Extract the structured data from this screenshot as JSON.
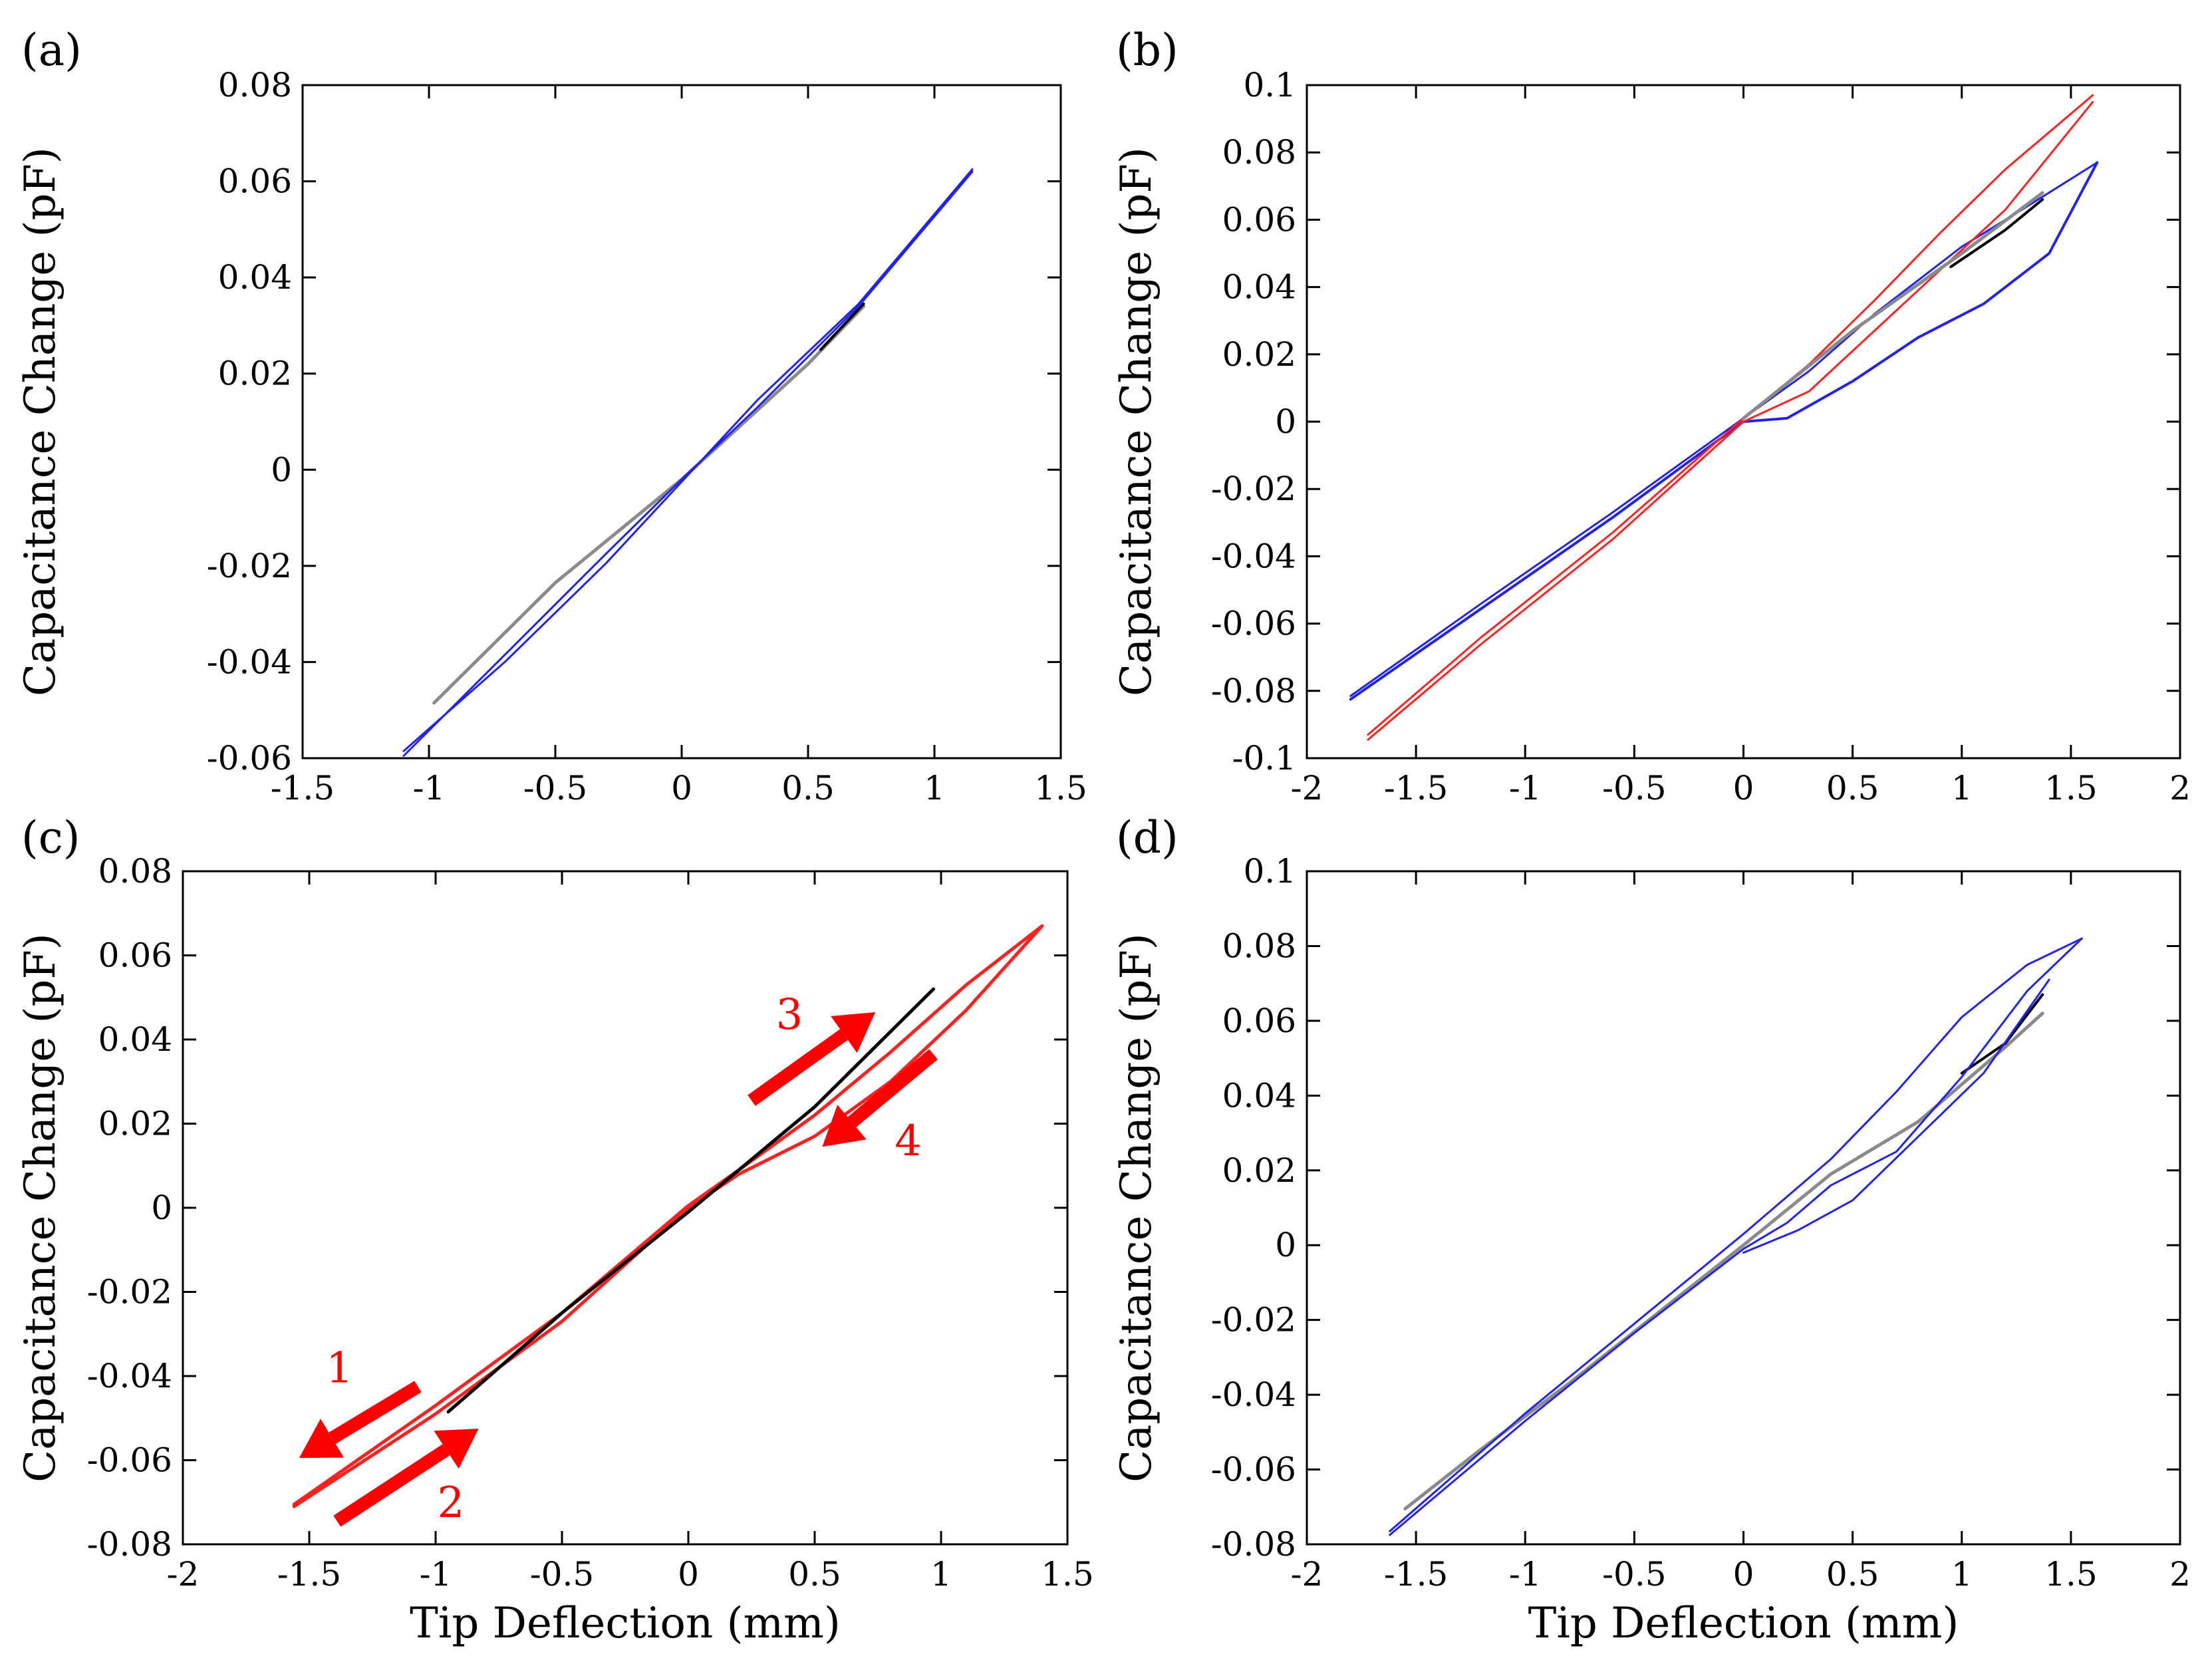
{
  "figure": {
    "colors": {
      "blue": "#2222ee",
      "red": "#ff2020",
      "black": "#000000",
      "gray": "#8a8a8a",
      "arrow_red": "#ff0000"
    }
  },
  "chart_data": [
    {
      "panel_label": "(a)",
      "type": "line",
      "title": "",
      "xlabel": "",
      "ylabel": "Capacitance Change (pF)",
      "xlim": [
        -1.5,
        1.5
      ],
      "ylim": [
        -0.06,
        0.08
      ],
      "x_ticks": [
        -1.5,
        -1,
        -0.5,
        0,
        0.5,
        1,
        1.5
      ],
      "x_tick_labels": [
        "-1.5",
        "-1",
        "-0.5",
        "0",
        "0.5",
        "1",
        "1.5"
      ],
      "y_ticks": [
        -0.06,
        -0.04,
        -0.02,
        0,
        0.02,
        0.04,
        0.06,
        0.08
      ],
      "y_tick_labels": [
        "-0.06",
        "-0.04",
        "-0.02",
        "0",
        "0.02",
        "0.04",
        "0.06",
        "0.08"
      ],
      "grid": false,
      "series": [
        {
          "name": "gray",
          "color": "gray",
          "width": 5,
          "x": [
            -0.98,
            -0.5,
            0,
            0.5,
            0.72
          ],
          "y": [
            -0.0485,
            -0.0235,
            -0.002,
            0.022,
            0.034
          ]
        },
        {
          "name": "black",
          "color": "black",
          "width": 4,
          "x": [
            0.55,
            0.72
          ],
          "y": [
            0.025,
            0.0345
          ]
        },
        {
          "name": "blue loop up",
          "color": "blue",
          "width": 3,
          "x": [
            -1.1,
            -0.7,
            -0.3,
            0,
            0.3,
            0.7,
            1.15
          ],
          "y": [
            -0.0595,
            -0.0385,
            -0.0175,
            -0.002,
            0.013,
            0.034,
            0.062
          ]
        },
        {
          "name": "blue loop down",
          "color": "blue",
          "width": 3,
          "x": [
            1.15,
            0.7,
            0.3,
            0,
            -0.3,
            -0.7,
            -1.1
          ],
          "y": [
            0.0625,
            0.0345,
            0.0145,
            -0.0025,
            -0.0195,
            -0.04,
            -0.0585
          ]
        }
      ]
    },
    {
      "panel_label": "(b)",
      "type": "line",
      "title": "",
      "xlabel": "",
      "ylabel": "Capacitance Change (pF)",
      "xlim": [
        -2,
        2
      ],
      "ylim": [
        -0.1,
        0.1
      ],
      "x_ticks": [
        -2,
        -1.5,
        -1,
        -0.5,
        0,
        0.5,
        1,
        1.5,
        2
      ],
      "x_tick_labels": [
        "-2",
        "-1.5",
        "-1",
        "-0.5",
        "0",
        "0.5",
        "1",
        "1.5",
        "2"
      ],
      "y_ticks": [
        -0.1,
        -0.08,
        -0.06,
        -0.04,
        -0.02,
        0,
        0.02,
        0.04,
        0.06,
        0.08,
        0.1
      ],
      "y_tick_labels": [
        "-0.1",
        "-0.08",
        "-0.06",
        "-0.04",
        "-0.02",
        "0",
        "0.02",
        "0.04",
        "0.06",
        "0.08",
        "0.1"
      ],
      "grid": false,
      "series": [
        {
          "name": "blue lower",
          "color": "blue",
          "width": 4,
          "x": [
            -1.8,
            -1.2,
            -0.6,
            0,
            0.2,
            0.5,
            0.8,
            1.1,
            1.4,
            1.62
          ],
          "y": [
            -0.0825,
            -0.0555,
            -0.0285,
            0,
            0.001,
            0.012,
            0.025,
            0.035,
            0.05,
            0.077
          ]
        },
        {
          "name": "blue upper",
          "color": "blue",
          "width": 3,
          "x": [
            1.62,
            1.3,
            1.0,
            0.6,
            0.3,
            0,
            -0.6,
            -1.2,
            -1.8
          ],
          "y": [
            0.077,
            0.064,
            0.052,
            0.032,
            0.015,
            0.001,
            -0.027,
            -0.054,
            -0.0815
          ]
        },
        {
          "name": "red lower",
          "color": "red",
          "width": 3,
          "x": [
            -1.72,
            -1.2,
            -0.6,
            0,
            0.3,
            0.6,
            0.9,
            1.2,
            1.6
          ],
          "y": [
            -0.0945,
            -0.066,
            -0.035,
            0,
            0.009,
            0.027,
            0.045,
            0.063,
            0.095
          ]
        },
        {
          "name": "red upper",
          "color": "red",
          "width": 3,
          "x": [
            1.6,
            1.2,
            0.9,
            0.6,
            0.3,
            0,
            -0.6,
            -1.2,
            -1.72
          ],
          "y": [
            0.097,
            0.075,
            0.056,
            0.036,
            0.017,
            0.001,
            -0.033,
            -0.064,
            -0.093
          ]
        },
        {
          "name": "gray",
          "color": "gray",
          "width": 5,
          "x": [
            0,
            0.5,
            1.0,
            1.37
          ],
          "y": [
            0.001,
            0.027,
            0.05,
            0.068
          ]
        },
        {
          "name": "black",
          "color": "black",
          "width": 4,
          "x": [
            0.95,
            1.2,
            1.37
          ],
          "y": [
            0.046,
            0.057,
            0.066
          ]
        }
      ]
    },
    {
      "panel_label": "(c)",
      "type": "line",
      "title": "",
      "xlabel": "Tip Deflection (mm)",
      "ylabel": "Capacitance Change (pF)",
      "xlim": [
        -2,
        1.5
      ],
      "ylim": [
        -0.08,
        0.08
      ],
      "x_ticks": [
        -2,
        -1.5,
        -1,
        -0.5,
        0,
        0.5,
        1,
        1.5
      ],
      "x_tick_labels": [
        "-2",
        "-1.5",
        "-1",
        "-0.5",
        "0",
        "0.5",
        "1",
        "1.5"
      ],
      "y_ticks": [
        -0.08,
        -0.06,
        -0.04,
        -0.02,
        0,
        0.02,
        0.04,
        0.06,
        0.08
      ],
      "y_tick_labels": [
        "-0.08",
        "-0.06",
        "-0.04",
        "-0.02",
        "0",
        "0.02",
        "0.04",
        "0.06",
        "0.08"
      ],
      "grid": false,
      "series": [
        {
          "name": "red loop",
          "color": "red",
          "width": 5,
          "x": [
            -1.56,
            -1.0,
            -0.5,
            0,
            0.2,
            0.5,
            0.8,
            1.1,
            1.4,
            1.1,
            0.8,
            0.5,
            0.2,
            0,
            -0.5,
            -1.0,
            -1.56
          ],
          "y": [
            -0.071,
            -0.049,
            -0.027,
            0,
            0.008,
            0.017,
            0.03,
            0.047,
            0.067,
            0.053,
            0.037,
            0.022,
            0.009,
            0.0005,
            -0.025,
            -0.047,
            -0.0705
          ]
        },
        {
          "name": "black",
          "color": "black",
          "width": 5,
          "x": [
            -0.95,
            -0.5,
            0,
            0.5,
            0.97
          ],
          "y": [
            -0.0485,
            -0.025,
            -0.001,
            0.024,
            0.052
          ]
        }
      ],
      "annotations": [
        {
          "text": "1",
          "x": -1.38,
          "y": -0.0415
        },
        {
          "text": "2",
          "x": -0.94,
          "y": -0.0735
        },
        {
          "text": "3",
          "x": 0.4,
          "y": 0.0425
        },
        {
          "text": "4",
          "x": 0.87,
          "y": 0.0125
        }
      ],
      "arrows": [
        {
          "label": "1",
          "from": [
            -1.07,
            -0.0425
          ],
          "to": [
            -1.54,
            -0.0595
          ]
        },
        {
          "label": "2",
          "from": [
            -1.39,
            -0.0745
          ],
          "to": [
            -0.83,
            -0.0525
          ]
        },
        {
          "label": "3",
          "from": [
            0.25,
            0.0255
          ],
          "to": [
            0.74,
            0.0465
          ]
        },
        {
          "label": "4",
          "from": [
            0.97,
            0.0365
          ],
          "to": [
            0.53,
            0.0145
          ]
        }
      ]
    },
    {
      "panel_label": "(d)",
      "type": "line",
      "title": "",
      "xlabel": "Tip Deflection (mm)",
      "ylabel": "Capacitance Change (pF)",
      "xlim": [
        -2,
        2
      ],
      "ylim": [
        -0.08,
        0.1
      ],
      "x_ticks": [
        -2,
        -1.5,
        -1,
        -0.5,
        0,
        0.5,
        1,
        1.5,
        2
      ],
      "x_tick_labels": [
        "-2",
        "-1.5",
        "-1",
        "-0.5",
        "0",
        "0.5",
        "1",
        "1.5",
        "2"
      ],
      "y_ticks": [
        -0.08,
        -0.06,
        -0.04,
        -0.02,
        0,
        0.02,
        0.04,
        0.06,
        0.08,
        0.1
      ],
      "y_tick_labels": [
        "-0.08",
        "-0.06",
        "-0.04",
        "-0.02",
        "0",
        "0.02",
        "0.04",
        "0.06",
        "0.08",
        "0.1"
      ],
      "grid": false,
      "series": [
        {
          "name": "gray",
          "color": "gray",
          "width": 5,
          "x": [
            -1.55,
            -1.2,
            -0.8,
            -0.4,
            0,
            0.4,
            0.8,
            1.2,
            1.37
          ],
          "y": [
            -0.0705,
            -0.0545,
            -0.037,
            -0.0185,
            0,
            0.019,
            0.033,
            0.053,
            0.062
          ]
        },
        {
          "name": "black",
          "color": "black",
          "width": 4,
          "x": [
            1.0,
            1.2,
            1.37
          ],
          "y": [
            0.046,
            0.054,
            0.067
          ]
        },
        {
          "name": "blue loop 1",
          "color": "blue",
          "width": 3,
          "x": [
            -1.62,
            -1.0,
            -0.5,
            0,
            0.2,
            0.4,
            0.7,
            1.0,
            1.3,
            1.55
          ],
          "y": [
            -0.0775,
            -0.047,
            -0.0235,
            -0.001,
            0.006,
            0.016,
            0.025,
            0.045,
            0.068,
            0.082
          ]
        },
        {
          "name": "blue loop 2",
          "color": "blue",
          "width": 3,
          "x": [
            1.55,
            1.3,
            1.0,
            0.7,
            0.4,
            0.2,
            0,
            -0.5,
            -1.0,
            -1.62
          ],
          "y": [
            0.082,
            0.075,
            0.061,
            0.041,
            0.023,
            0.013,
            0.003,
            -0.021,
            -0.045,
            -0.0765
          ]
        },
        {
          "name": "blue loop 3",
          "color": "blue",
          "width": 3,
          "x": [
            0,
            0.25,
            0.5,
            0.8,
            1.1,
            1.4
          ],
          "y": [
            -0.002,
            0.004,
            0.012,
            0.029,
            0.046,
            0.071
          ]
        }
      ]
    }
  ]
}
